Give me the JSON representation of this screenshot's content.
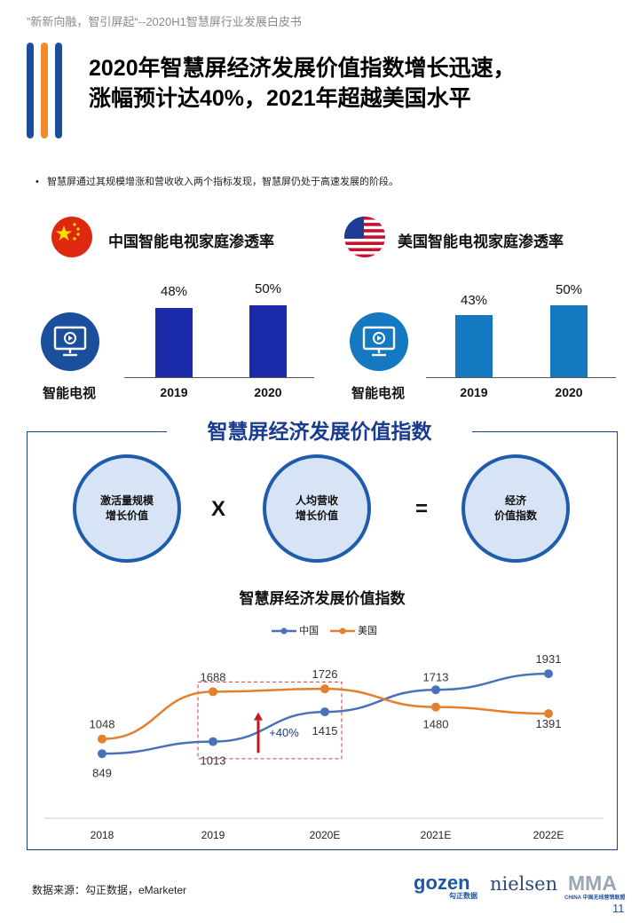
{
  "header": {
    "top_note": "”新新向融，智引屏起“--2020H1智慧屏行业发展白皮书",
    "title_line1": "2020年智慧屏经济发展价值指数增长迅速，",
    "title_line2": "涨幅预计达40%，2021年超越美国水平"
  },
  "bullet": "智慧屏通过其规模增涨和营收收入两个指标发现，智慧屏仍处于高速发展的阶段。",
  "china": {
    "label": "中国智能电视家庭渗透率",
    "tv_label": "智能电视",
    "bars": [
      {
        "year": "2019",
        "value": 48,
        "label": "48%"
      },
      {
        "year": "2020",
        "value": 50,
        "label": "50%"
      }
    ],
    "color": "#1a2aa8"
  },
  "us": {
    "label": "美国智能电视家庭渗透率",
    "tv_label": "智能电视",
    "bars": [
      {
        "year": "2019",
        "value": 43,
        "label": "43%"
      },
      {
        "year": "2020",
        "value": 50,
        "label": "50%"
      }
    ],
    "color": "#1479c0"
  },
  "index_box": {
    "title": "智慧屏经济发展价值指数",
    "circle1": [
      "激活量规模",
      "增长价值"
    ],
    "op1": "X",
    "circle2": [
      "人均营收",
      "增长价值"
    ],
    "op2": "=",
    "circle3": [
      "经济",
      "价值指数"
    ]
  },
  "chart_data": {
    "type": "line",
    "title": "智慧屏经济发展价值指数",
    "categories": [
      "2018",
      "2019",
      "2020E",
      "2021E",
      "2022E"
    ],
    "series": [
      {
        "name": "中国",
        "values": [
          849,
          1013,
          1415,
          1713,
          1931
        ],
        "color": "#4a72b8"
      },
      {
        "name": "美国",
        "values": [
          1048,
          1688,
          1726,
          1480,
          1391
        ],
        "color": "#e2802e"
      }
    ],
    "ylim": [
      0,
      2400
    ],
    "annotation": "+40%",
    "grid": false,
    "legend": "top-center"
  },
  "footer": {
    "source": "数据来源：勾正数据，eMarketer",
    "logo1": "gozen",
    "logo1_sub": "勾正数据",
    "logo2": "nielsen",
    "logo3": "MMA",
    "logo3_sub": "CHINA 中国无线营销联盟",
    "page": "11"
  }
}
